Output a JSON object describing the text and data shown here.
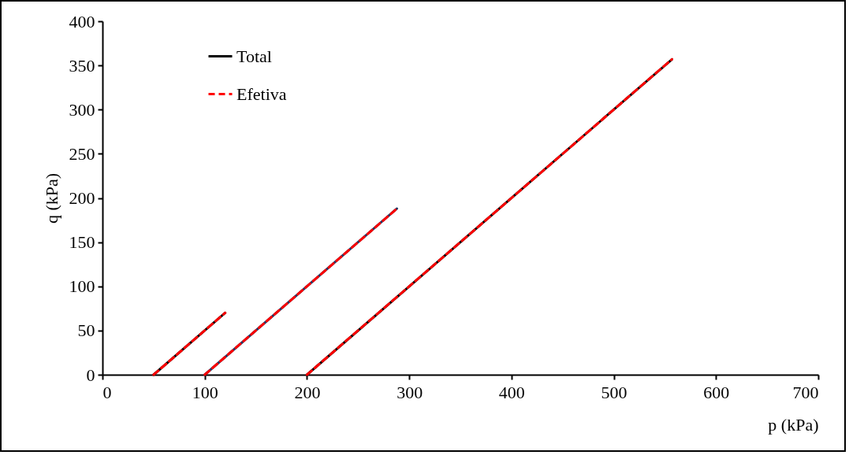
{
  "chart_data": {
    "type": "line",
    "xlabel": "p (kPa)",
    "ylabel": "q  (kPa)",
    "xlim": [
      0,
      700
    ],
    "xticks": [
      0,
      100,
      200,
      300,
      400,
      500,
      600,
      700
    ],
    "ylim": [
      0,
      400
    ],
    "yticks": [
      0,
      50,
      100,
      150,
      200,
      250,
      300,
      350,
      400
    ],
    "grid": false,
    "legend": "top left",
    "marker": "none",
    "series": [
      {
        "name": "Total",
        "color": "#000000",
        "line_style": "solid",
        "x": [
          50,
          120
        ],
        "values": [
          0,
          70
        ]
      },
      {
        "color": "#1f3864",
        "line_style": "solid",
        "x": [
          100,
          288
        ],
        "values": [
          0,
          188
        ]
      },
      {
        "color": "#000000",
        "line_style": "solid",
        "x": [
          200,
          557
        ],
        "values": [
          0,
          357
        ]
      },
      {
        "name": "Efetiva",
        "color": "#ff0000",
        "line_style": "dashed",
        "x": [
          50,
          120
        ],
        "values": [
          0,
          70
        ]
      },
      {
        "color": "#ff0000",
        "line_style": "dashed",
        "x": [
          100,
          288
        ],
        "values": [
          0,
          188
        ]
      },
      {
        "color": "#ff0000",
        "line_style": "dashed",
        "x": [
          200,
          557
        ],
        "values": [
          0,
          357
        ]
      }
    ]
  }
}
